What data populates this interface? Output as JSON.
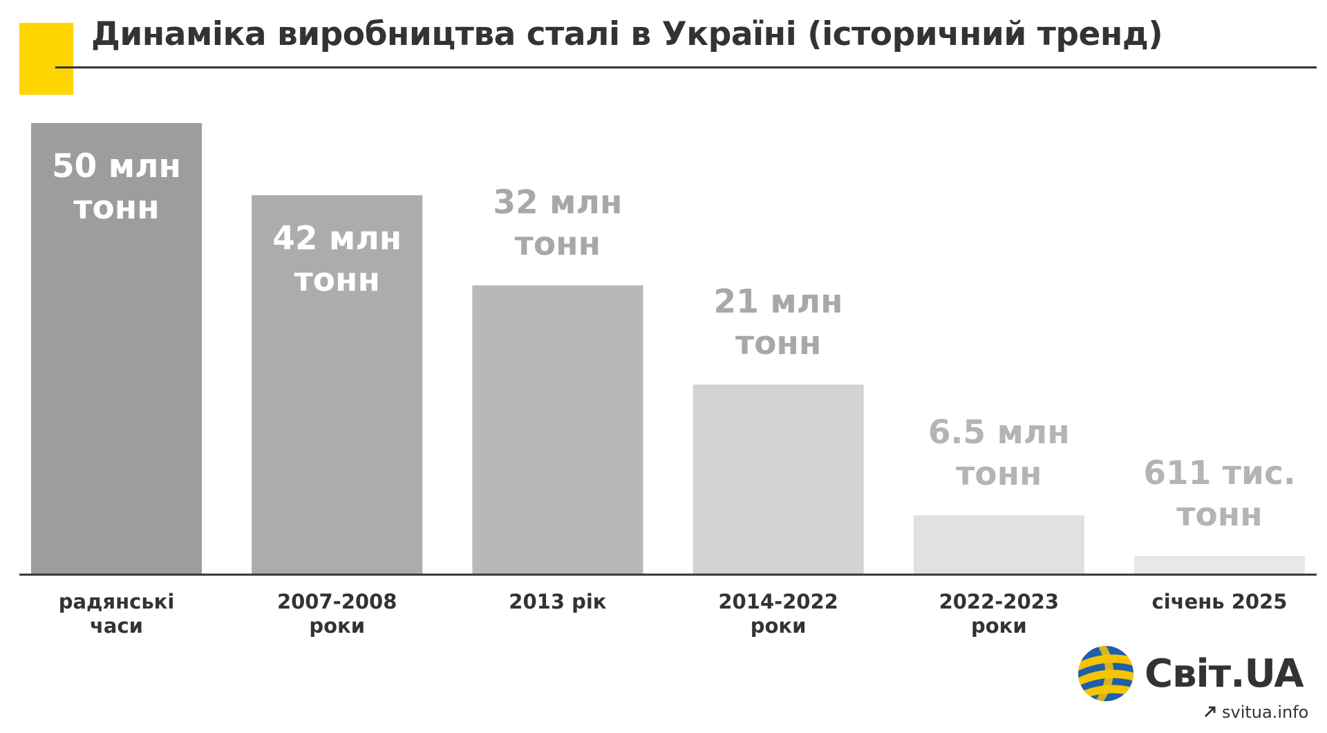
{
  "title": "Динаміка виробництва сталі в Україні (історичний тренд)",
  "brand": "Світ.UA",
  "site": "svitua.info",
  "colors": {
    "accent": "#FFD500",
    "axis": "#333333"
  },
  "chart_data": {
    "type": "bar",
    "unit": "млн тонн",
    "categories": [
      [
        "радянські",
        "часи"
      ],
      [
        "2007-2008",
        "роки"
      ],
      [
        "2013 рік"
      ],
      [
        "2014-2022",
        "роки"
      ],
      [
        "2022-2023",
        "роки"
      ],
      [
        "січень 2025"
      ]
    ],
    "values": [
      50,
      42,
      32,
      21,
      6.5,
      0.611
    ],
    "labels": [
      [
        "50 млн",
        "тонн"
      ],
      [
        "42 млн",
        "тонн"
      ],
      [
        "32 млн",
        "тонн"
      ],
      [
        "21 млн",
        "тонн"
      ],
      [
        "6.5 млн",
        "тонн"
      ],
      [
        "611 тис.",
        "тонн"
      ]
    ],
    "bar_colors": [
      "#9d9d9d",
      "#acacac",
      "#b8b8b8",
      "#d3d3d3",
      "#e1e1e1",
      "#e8e8e8"
    ],
    "label_colors": [
      "#ffffff",
      "#ffffff",
      "#a8a8a8",
      "#a8a8a8",
      "#b4b4b4",
      "#b4b4b4"
    ],
    "grid": false,
    "legend": "none"
  }
}
